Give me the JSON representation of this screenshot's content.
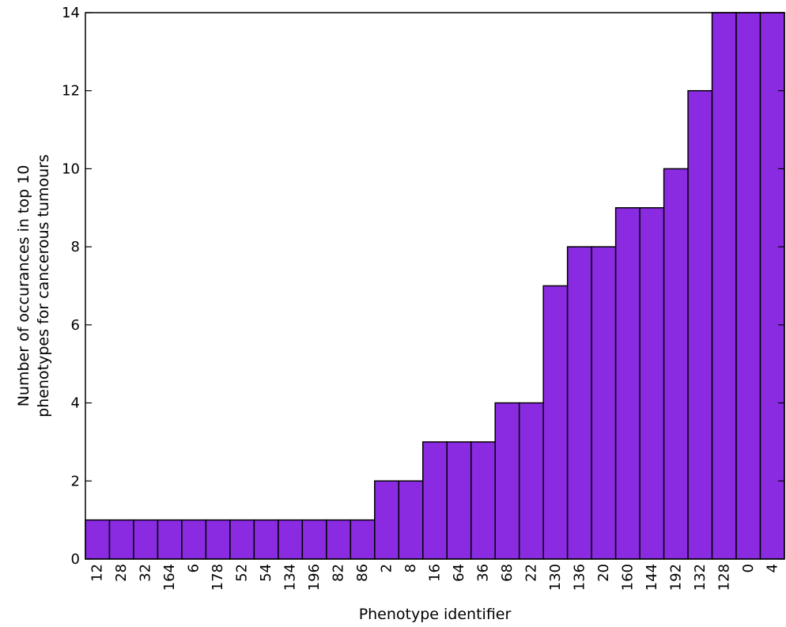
{
  "chart_data": {
    "type": "bar",
    "categories": [
      "12",
      "28",
      "32",
      "164",
      "6",
      "178",
      "52",
      "54",
      "134",
      "196",
      "82",
      "86",
      "2",
      "8",
      "16",
      "64",
      "36",
      "68",
      "22",
      "130",
      "136",
      "20",
      "160",
      "144",
      "192",
      "132",
      "128",
      "0",
      "4"
    ],
    "values": [
      1,
      1,
      1,
      1,
      1,
      1,
      1,
      1,
      1,
      1,
      1,
      1,
      2,
      2,
      3,
      3,
      3,
      4,
      4,
      7,
      8,
      8,
      9,
      9,
      10,
      12,
      14,
      14,
      14
    ],
    "xlabel": "Phenotype identifier",
    "ylabel_lines": [
      "Number of occurances in top 10",
      "phenotypes for cancerous tumours"
    ],
    "ylim": [
      0,
      14
    ],
    "yticks": [
      0,
      2,
      4,
      6,
      8,
      10,
      12,
      14
    ],
    "bar_color": "#8a2be2",
    "grid": false
  }
}
